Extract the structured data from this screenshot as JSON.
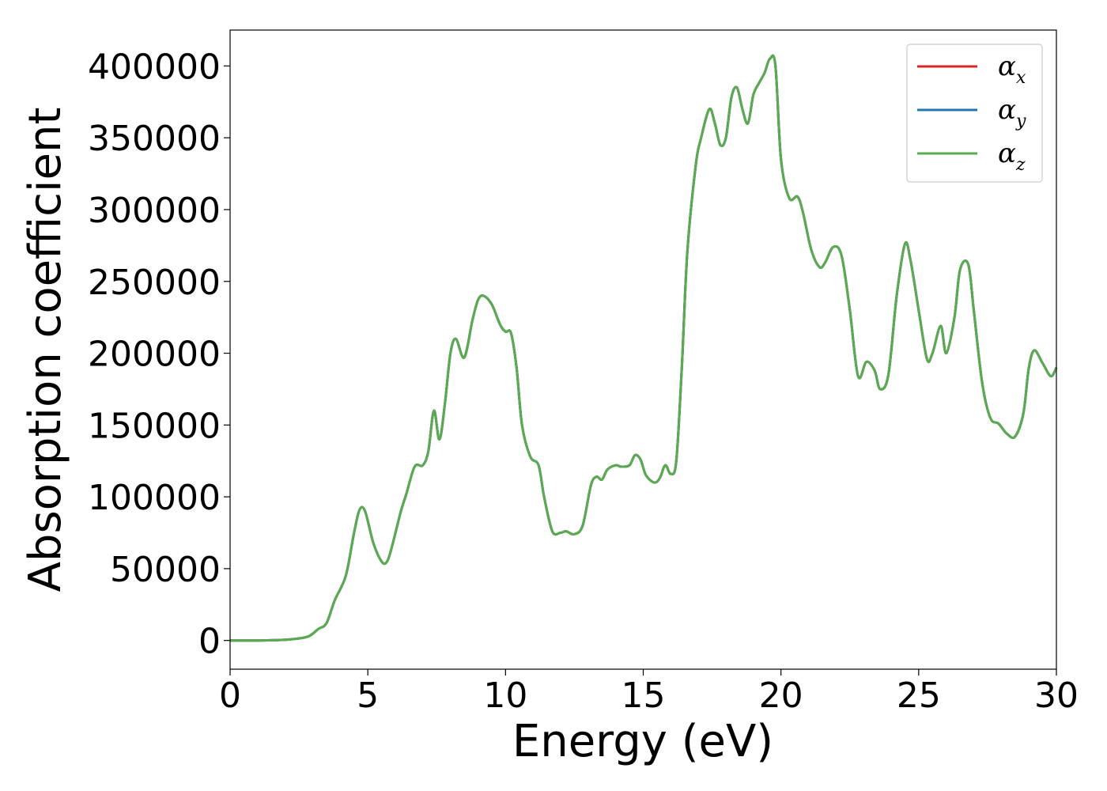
{
  "chart_data": {
    "type": "line",
    "title": "",
    "xlabel": "Energy (eV)",
    "ylabel": "Absorption coefficient",
    "xlim": [
      0,
      30
    ],
    "ylim": [
      -20000,
      425000
    ],
    "x_ticks": [
      0,
      5,
      10,
      15,
      20,
      25,
      30
    ],
    "x_tick_labels": [
      "0",
      "5",
      "10",
      "15",
      "20",
      "25",
      "30"
    ],
    "y_ticks": [
      0,
      50000,
      100000,
      150000,
      200000,
      250000,
      300000,
      350000,
      400000
    ],
    "y_tick_labels": [
      "0",
      "50000",
      "100000",
      "150000",
      "200000",
      "250000",
      "300000",
      "350000",
      "400000"
    ],
    "grid": false,
    "legend_position": "top-right",
    "x": [
      0,
      1,
      2,
      2.8,
      3.2,
      3.5,
      3.8,
      4.2,
      4.5,
      4.7,
      4.9,
      5.2,
      5.5,
      5.7,
      5.9,
      6.2,
      6.4,
      6.7,
      7.0,
      7.2,
      7.4,
      7.6,
      7.8,
      8.0,
      8.2,
      8.5,
      8.8,
      9.0,
      9.2,
      9.5,
      9.8,
      10.0,
      10.2,
      10.4,
      10.6,
      10.9,
      11.2,
      11.4,
      11.7,
      12.0,
      12.2,
      12.5,
      12.8,
      13.1,
      13.3,
      13.5,
      13.7,
      14.0,
      14.2,
      14.5,
      14.7,
      14.9,
      15.1,
      15.4,
      15.6,
      15.8,
      16.0,
      16.2,
      16.4,
      16.6,
      16.9,
      17.1,
      17.4,
      17.6,
      17.8,
      18.0,
      18.2,
      18.4,
      18.6,
      18.8,
      19.0,
      19.2,
      19.4,
      19.6,
      19.8,
      20.0,
      20.3,
      20.6,
      20.8,
      21.1,
      21.4,
      21.6,
      21.9,
      22.2,
      22.5,
      22.8,
      23.1,
      23.4,
      23.6,
      23.9,
      24.2,
      24.5,
      24.7,
      25.0,
      25.3,
      25.5,
      25.8,
      26.0,
      26.3,
      26.5,
      26.8,
      27.0,
      27.3,
      27.6,
      27.9,
      28.2,
      28.5,
      28.8,
      29.0,
      29.2,
      29.5,
      29.8,
      30.0
    ],
    "series": [
      {
        "name": "αx",
        "color": "#d62728",
        "values": [
          0,
          0,
          500,
          2500,
          8000,
          12000,
          28000,
          45000,
          75000,
          91000,
          90000,
          68000,
          55000,
          55000,
          67000,
          90000,
          102000,
          121000,
          122000,
          132000,
          160000,
          140000,
          165000,
          200000,
          210000,
          197000,
          223000,
          237000,
          240000,
          234000,
          220000,
          215000,
          214000,
          190000,
          150000,
          128000,
          122000,
          100000,
          76000,
          75000,
          76000,
          74000,
          80000,
          108000,
          114000,
          112000,
          119000,
          122000,
          121000,
          122000,
          129000,
          126000,
          115000,
          110000,
          113000,
          122000,
          116000,
          125000,
          190000,
          270000,
          330000,
          350000,
          370000,
          360000,
          345000,
          350000,
          378000,
          385000,
          370000,
          360000,
          380000,
          388000,
          395000,
          405000,
          400000,
          335000,
          308000,
          309000,
          298000,
          272000,
          260000,
          263000,
          274000,
          268000,
          230000,
          184000,
          194000,
          188000,
          175000,
          185000,
          240000,
          276000,
          265000,
          230000,
          196000,
          200000,
          219000,
          200000,
          225000,
          258000,
          262000,
          230000,
          180000,
          155000,
          151000,
          144000,
          142000,
          158000,
          190000,
          202000,
          193000,
          184000,
          190000
        ]
      },
      {
        "name": "αy",
        "color": "#1f77b4",
        "values": [
          0,
          0,
          500,
          2500,
          8000,
          12000,
          28000,
          45000,
          75000,
          91000,
          90000,
          68000,
          55000,
          55000,
          67000,
          90000,
          102000,
          121000,
          122000,
          132000,
          160000,
          140000,
          165000,
          200000,
          210000,
          197000,
          223000,
          237000,
          240000,
          234000,
          220000,
          215000,
          214000,
          190000,
          150000,
          128000,
          122000,
          100000,
          76000,
          75000,
          76000,
          74000,
          80000,
          108000,
          114000,
          112000,
          119000,
          122000,
          121000,
          122000,
          129000,
          126000,
          115000,
          110000,
          113000,
          122000,
          116000,
          125000,
          190000,
          270000,
          330000,
          350000,
          370000,
          360000,
          345000,
          350000,
          378000,
          385000,
          370000,
          360000,
          380000,
          388000,
          395000,
          405000,
          400000,
          335000,
          308000,
          309000,
          298000,
          272000,
          260000,
          263000,
          274000,
          268000,
          230000,
          184000,
          194000,
          188000,
          175000,
          185000,
          240000,
          276000,
          265000,
          230000,
          196000,
          200000,
          219000,
          200000,
          225000,
          258000,
          262000,
          230000,
          180000,
          155000,
          151000,
          144000,
          142000,
          158000,
          190000,
          202000,
          193000,
          184000,
          190000
        ]
      },
      {
        "name": "αz",
        "color": "#5aab50",
        "values": [
          0,
          0,
          500,
          2500,
          8000,
          12000,
          28000,
          45000,
          75000,
          91000,
          90000,
          68000,
          55000,
          55000,
          67000,
          90000,
          102000,
          121000,
          122000,
          132000,
          160000,
          140000,
          165000,
          200000,
          210000,
          197000,
          223000,
          237000,
          240000,
          234000,
          220000,
          215000,
          214000,
          190000,
          150000,
          128000,
          122000,
          100000,
          76000,
          75000,
          76000,
          74000,
          80000,
          108000,
          114000,
          112000,
          119000,
          122000,
          121000,
          122000,
          129000,
          126000,
          115000,
          110000,
          113000,
          122000,
          116000,
          125000,
          190000,
          270000,
          330000,
          350000,
          370000,
          360000,
          345000,
          350000,
          378000,
          385000,
          370000,
          360000,
          380000,
          388000,
          395000,
          405000,
          400000,
          335000,
          308000,
          309000,
          298000,
          272000,
          260000,
          263000,
          274000,
          268000,
          230000,
          184000,
          194000,
          188000,
          175000,
          185000,
          240000,
          276000,
          265000,
          230000,
          196000,
          200000,
          219000,
          200000,
          225000,
          258000,
          262000,
          230000,
          180000,
          155000,
          151000,
          144000,
          142000,
          158000,
          190000,
          202000,
          193000,
          184000,
          190000
        ]
      }
    ],
    "legend": [
      {
        "symbol": "α",
        "subscript": "x",
        "color": "#d62728"
      },
      {
        "symbol": "α",
        "subscript": "y",
        "color": "#1f77b4"
      },
      {
        "symbol": "α",
        "subscript": "z",
        "color": "#5aab50"
      }
    ]
  }
}
